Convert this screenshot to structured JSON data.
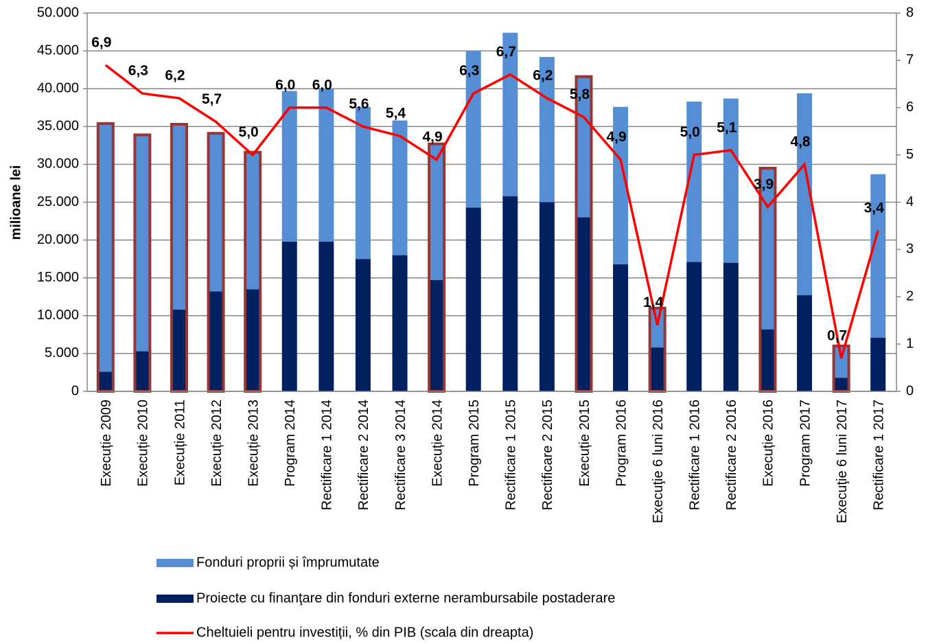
{
  "chart_data": {
    "type": "bar",
    "y_label": "milioane lei",
    "categories": [
      "Execuție 2009",
      "Execuție 2010",
      "Execuție 2011",
      "Execuție 2012",
      "Execuție 2013",
      "Program 2014",
      "Rectificare 1 2014",
      "Rectificare 2 2014",
      "Rectificare 3 2014",
      "Execuție 2014",
      "Program 2015",
      "Rectificare 1 2015",
      "Rectificare 2 2015",
      "Execuție 2015",
      "Program 2016",
      "Execuţie 6 luni 2016",
      "Rectificare 1 2016",
      "Rectificare 2 2016",
      "Execuție 2016",
      "Program 2017",
      "Execuţie 6 luni 2017",
      "Rectificare 1 2017"
    ],
    "series": [
      {
        "name": "Fonduri proprii și împrumutate",
        "type": "bar",
        "color": "#558ed5",
        "values": [
          32800,
          28600,
          24500,
          20900,
          18100,
          19900,
          20200,
          20100,
          17800,
          18000,
          20700,
          21600,
          19200,
          18600,
          20800,
          5200,
          21200,
          21700,
          21300,
          26700,
          4200,
          21600
        ]
      },
      {
        "name": "Proiecte cu finanţare din fonduri externe nerambursabile postaderare",
        "type": "bar",
        "color": "#002060",
        "values": [
          2600,
          5300,
          10800,
          13200,
          13500,
          19800,
          19800,
          17500,
          18000,
          14700,
          24300,
          25800,
          25000,
          23000,
          16800,
          5800,
          17100,
          17000,
          8200,
          12700,
          1800,
          7100
        ]
      },
      {
        "name": "Cheltuieli pentru investiții, % din PIB (scala din dreapta)",
        "type": "line",
        "color": "#ff0000",
        "axis": "y2",
        "values": [
          6.9,
          6.3,
          6.2,
          5.7,
          5.0,
          6.0,
          6.0,
          5.6,
          5.4,
          4.9,
          6.3,
          6.7,
          6.2,
          5.8,
          4.9,
          1.4,
          5.0,
          5.1,
          3.9,
          4.8,
          0.7,
          3.4
        ],
        "value_labels": [
          "6,9",
          "6,3",
          "6,2",
          "5,7",
          "5,0",
          "6,0",
          "6,0",
          "5,6",
          "5,4",
          "4,9",
          "6,3",
          "6,7",
          "6,2",
          "5,8",
          "4,9",
          "1,4",
          "5,0",
          "5,1",
          "3,9",
          "4,8",
          "0,7",
          "3,4"
        ]
      }
    ],
    "bar_outline": {
      "color": "#953735",
      "categories": [
        0,
        1,
        2,
        3,
        4,
        9,
        13,
        15,
        18,
        20
      ]
    },
    "ylim": [
      0,
      50000
    ],
    "yticks": [
      0,
      {
        "value": 5000,
        "label": "5.000"
      },
      {
        "value": 10000,
        "label": "10.000"
      },
      {
        "value": 15000,
        "label": "15.000"
      },
      {
        "value": 20000,
        "label": "20.000"
      },
      {
        "value": 25000,
        "label": "25.000"
      },
      {
        "value": 30000,
        "label": "30.000"
      },
      {
        "value": 35000,
        "label": "35.000"
      },
      {
        "value": 40000,
        "label": "40.000"
      },
      {
        "value": 45000,
        "label": "45.000"
      },
      {
        "value": 50000,
        "label": "50.000"
      }
    ],
    "y2lim": [
      0,
      8
    ],
    "y2ticks": [
      0,
      1,
      2,
      3,
      4,
      5,
      6,
      7,
      8
    ],
    "grid": true,
    "legend": "bottom"
  }
}
